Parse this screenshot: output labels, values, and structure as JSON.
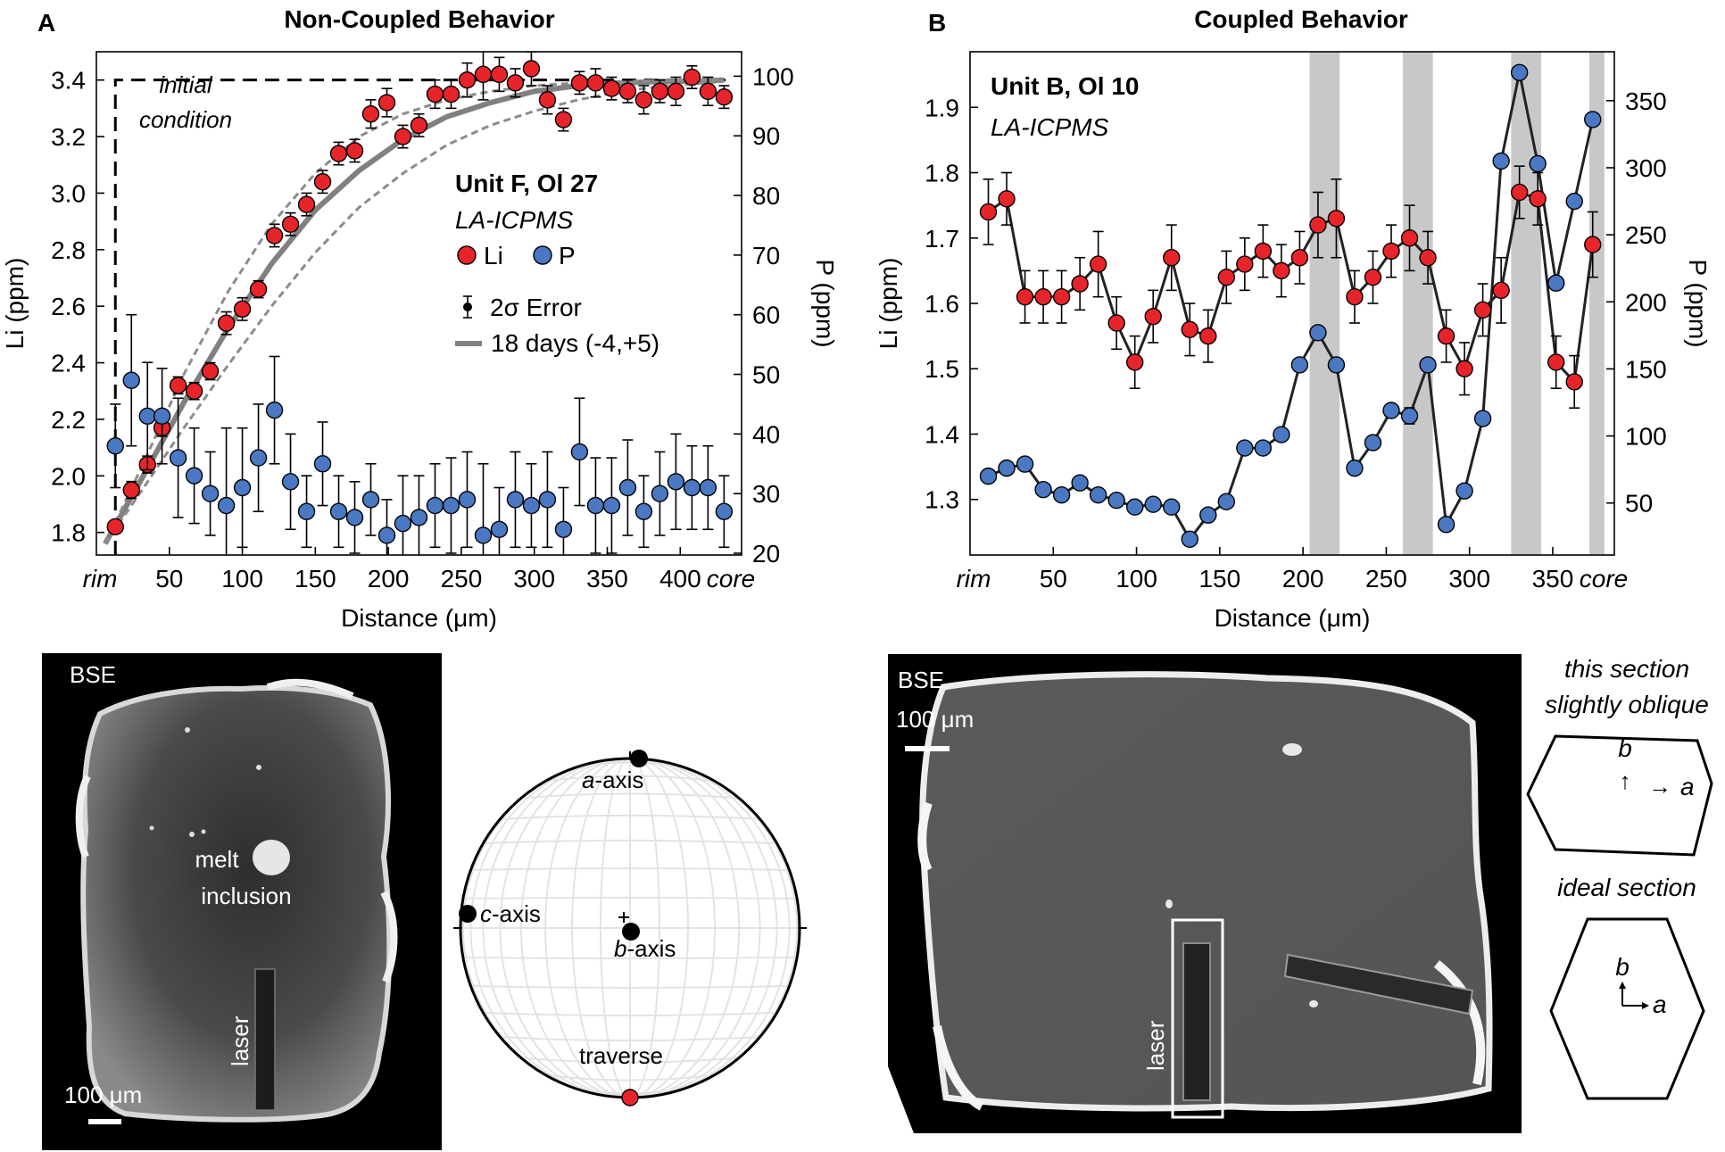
{
  "panel_a": {
    "letter": "A",
    "heading": "Non-Coupled Behavior",
    "sample": "Unit F, Ol 27",
    "method": "LA-ICPMS",
    "legend_li": "Li",
    "legend_p": "P",
    "legend_error": "2σ Error",
    "legend_model": "18 days (-4,+5)",
    "annotation_line1": "initial",
    "annotation_line2": "condition",
    "bse_label": "BSE",
    "scale_label": "100 μm",
    "melt_label_1": "melt",
    "melt_label_2": "inclusion",
    "laser_label": "laser",
    "stereonet": {
      "a_axis_italic": "a",
      "a_axis_rest": "-axis",
      "b_axis_italic": "b",
      "b_axis_rest": "-axis",
      "c_axis_italic": "c",
      "c_axis_rest": "-axis",
      "traverse": "traverse"
    }
  },
  "panel_b": {
    "letter": "B",
    "heading": "Coupled Behavior",
    "sample": "Unit B, Ol 10",
    "method": "LA-ICPMS",
    "bse_label": "BSE",
    "scale_label": "100 μm",
    "laser_label": "laser",
    "section_oblique_1": "this section",
    "section_oblique_2": "slightly oblique",
    "section_ideal": "ideal section",
    "axis_b": "b",
    "axis_a": "a",
    "arrow_up": "↑",
    "arrow_right": "→"
  },
  "colors": {
    "li": "#e8242b",
    "p": "#4a78c2",
    "model": "#808080",
    "shade": "#c8c8c8"
  },
  "chart_data": [
    {
      "type": "scatter",
      "title": "Non-Coupled Behavior",
      "xlabel": "Distance (μm)",
      "ylabel": "Li (ppm)",
      "y2label": "P (ppm)",
      "xlim": [
        0,
        442
      ],
      "ylim": [
        1.72,
        3.5
      ],
      "y2lim": [
        19.7,
        104.1
      ],
      "xticks": [
        50,
        100,
        150,
        200,
        250,
        300,
        350,
        400
      ],
      "xtick_start_label": "rim",
      "xtick_end_label": "core",
      "yticks": [
        1.8,
        2.0,
        2.2,
        2.4,
        2.6,
        2.8,
        3.0,
        3.2,
        3.4
      ],
      "y2ticks": [
        20,
        30,
        40,
        50,
        60,
        70,
        80,
        90,
        100
      ],
      "grid": false,
      "initial_condition": {
        "x_start": 13,
        "y": 3.4
      },
      "series": [
        {
          "name": "Li",
          "x": [
            13,
            24,
            35,
            45,
            56,
            67,
            78,
            89,
            100,
            111,
            122,
            133,
            144,
            155,
            166,
            177,
            188,
            199,
            210,
            221,
            232,
            243,
            254,
            265,
            276,
            287,
            298,
            309,
            320,
            331,
            342,
            353,
            364,
            375,
            386,
            397,
            408,
            419,
            430
          ],
          "y": [
            1.82,
            1.95,
            2.04,
            2.17,
            2.32,
            2.3,
            2.37,
            2.54,
            2.59,
            2.66,
            2.85,
            2.89,
            2.96,
            3.04,
            3.14,
            3.15,
            3.28,
            3.32,
            3.2,
            3.24,
            3.35,
            3.35,
            3.4,
            3.42,
            3.42,
            3.39,
            3.44,
            3.33,
            3.26,
            3.39,
            3.39,
            3.37,
            3.36,
            3.33,
            3.36,
            3.36,
            3.41,
            3.36,
            3.34
          ],
          "error": [
            0.02,
            0.03,
            0.03,
            0.03,
            0.03,
            0.03,
            0.03,
            0.04,
            0.04,
            0.03,
            0.04,
            0.04,
            0.04,
            0.04,
            0.04,
            0.04,
            0.05,
            0.05,
            0.04,
            0.04,
            0.05,
            0.05,
            0.06,
            0.09,
            0.06,
            0.05,
            0.06,
            0.05,
            0.04,
            0.04,
            0.05,
            0.04,
            0.04,
            0.05,
            0.04,
            0.05,
            0.04,
            0.05,
            0.04
          ]
        },
        {
          "name": "P",
          "axis": "right",
          "x": [
            13,
            24,
            35,
            45,
            56,
            67,
            78,
            89,
            100,
            111,
            122,
            133,
            144,
            155,
            166,
            177,
            188,
            199,
            210,
            221,
            232,
            243,
            254,
            265,
            276,
            287,
            298,
            309,
            320,
            331,
            342,
            353,
            364,
            375,
            386,
            397,
            408,
            419,
            430
          ],
          "y": [
            38,
            49,
            43,
            43,
            36,
            33,
            30,
            28,
            31,
            36,
            44,
            32,
            27,
            35,
            27,
            26,
            29,
            23,
            25,
            26,
            28,
            28,
            29,
            23,
            24,
            29,
            28,
            29,
            24,
            37,
            28,
            28,
            31,
            27,
            30,
            32,
            31,
            31,
            27
          ],
          "error": [
            7,
            11,
            9,
            8,
            10,
            8,
            7,
            13,
            10,
            9,
            9,
            8,
            6,
            7,
            6,
            6,
            6,
            6,
            8,
            7,
            7,
            8,
            8,
            12,
            7,
            8,
            7,
            8,
            7,
            9,
            8,
            8,
            8,
            6,
            7,
            8,
            7,
            7,
            6
          ]
        },
        {
          "name": "18 days (-4,+5)",
          "kind": "model",
          "x": [
            6,
            30,
            60,
            90,
            120,
            150,
            180,
            210,
            240,
            270,
            300,
            330,
            360,
            390,
            420,
            430
          ],
          "y": [
            1.76,
            1.98,
            2.26,
            2.52,
            2.75,
            2.94,
            3.08,
            3.19,
            3.27,
            3.32,
            3.36,
            3.38,
            3.39,
            3.395,
            3.398,
            3.4
          ]
        },
        {
          "name": "model lower bound (-4)",
          "kind": "model-bound",
          "x": [
            6,
            30,
            60,
            90,
            120,
            150,
            180,
            210,
            240,
            270,
            300,
            330,
            360,
            390,
            420,
            430
          ],
          "y": [
            1.76,
            2.02,
            2.36,
            2.65,
            2.89,
            3.07,
            3.2,
            3.28,
            3.33,
            3.36,
            3.38,
            3.39,
            3.395,
            3.398,
            3.4,
            3.4
          ]
        },
        {
          "name": "model upper bound (+5)",
          "kind": "model-bound",
          "x": [
            6,
            30,
            60,
            90,
            120,
            150,
            180,
            210,
            240,
            270,
            300,
            330,
            360,
            390,
            420,
            430
          ],
          "y": [
            1.76,
            1.94,
            2.17,
            2.39,
            2.6,
            2.79,
            2.95,
            3.07,
            3.17,
            3.24,
            3.29,
            3.33,
            3.36,
            3.38,
            3.39,
            3.395
          ]
        }
      ]
    },
    {
      "type": "line",
      "title": "Coupled Behavior",
      "xlabel": "Distance (μm)",
      "ylabel": "Li (ppm)",
      "y2label": "P (ppm)",
      "xlim": [
        0,
        387
      ],
      "ylim": [
        1.215,
        1.985
      ],
      "y2lim": [
        11.2,
        386.5
      ],
      "xticks": [
        50,
        100,
        150,
        200,
        250,
        300,
        350
      ],
      "xtick_start_label": "rim",
      "xtick_end_label": "core",
      "yticks": [
        1.3,
        1.4,
        1.5,
        1.6,
        1.7,
        1.8,
        1.9
      ],
      "y2ticks": [
        50,
        100,
        150,
        200,
        250,
        300,
        350
      ],
      "grid": false,
      "shaded_x_ranges": [
        [
          204,
          222
        ],
        [
          260,
          278
        ],
        [
          325,
          343
        ],
        [
          372,
          381
        ]
      ],
      "series": [
        {
          "name": "Li",
          "x": [
            11,
            22,
            33,
            44,
            55,
            66,
            77,
            88,
            99,
            110,
            121,
            132,
            143,
            154,
            165,
            176,
            187,
            198,
            209,
            220,
            231,
            242,
            253,
            264,
            275,
            286,
            297,
            308,
            319,
            330,
            341,
            352,
            363,
            374
          ],
          "y": [
            1.74,
            1.76,
            1.61,
            1.61,
            1.61,
            1.63,
            1.66,
            1.57,
            1.51,
            1.58,
            1.67,
            1.56,
            1.55,
            1.64,
            1.66,
            1.68,
            1.65,
            1.67,
            1.72,
            1.73,
            1.61,
            1.64,
            1.68,
            1.7,
            1.67,
            1.55,
            1.5,
            1.59,
            1.62,
            1.77,
            1.76,
            1.51,
            1.48,
            1.69
          ],
          "error": [
            0.05,
            0.04,
            0.04,
            0.04,
            0.04,
            0.04,
            0.05,
            0.04,
            0.04,
            0.04,
            0.05,
            0.04,
            0.04,
            0.04,
            0.04,
            0.04,
            0.04,
            0.04,
            0.05,
            0.06,
            0.04,
            0.04,
            0.04,
            0.05,
            0.04,
            0.04,
            0.04,
            0.04,
            0.05,
            0.04,
            0.04,
            0.04,
            0.04,
            0.05
          ]
        },
        {
          "name": "P",
          "axis": "right",
          "x": [
            11,
            22,
            33,
            44,
            55,
            66,
            77,
            88,
            99,
            110,
            121,
            132,
            143,
            154,
            165,
            176,
            187,
            198,
            209,
            220,
            231,
            242,
            253,
            264,
            275,
            286,
            297,
            308,
            319,
            330,
            341,
            352,
            363,
            374
          ],
          "y": [
            70,
            76,
            79,
            60,
            56,
            65,
            56,
            52,
            47,
            49,
            47,
            23,
            41,
            51,
            91,
            91,
            101,
            153,
            177,
            153,
            76,
            95,
            119,
            115,
            153,
            34,
            59,
            113,
            305,
            371,
            303,
            214,
            275,
            336
          ],
          "error": [
            3,
            3,
            3,
            3,
            3,
            3,
            3,
            3,
            3,
            3,
            3,
            3,
            3,
            3,
            3,
            3,
            3,
            3,
            3,
            3,
            3,
            3,
            3,
            6,
            3,
            3,
            3,
            3,
            3,
            3,
            3,
            3,
            3,
            4
          ]
        }
      ]
    }
  ]
}
